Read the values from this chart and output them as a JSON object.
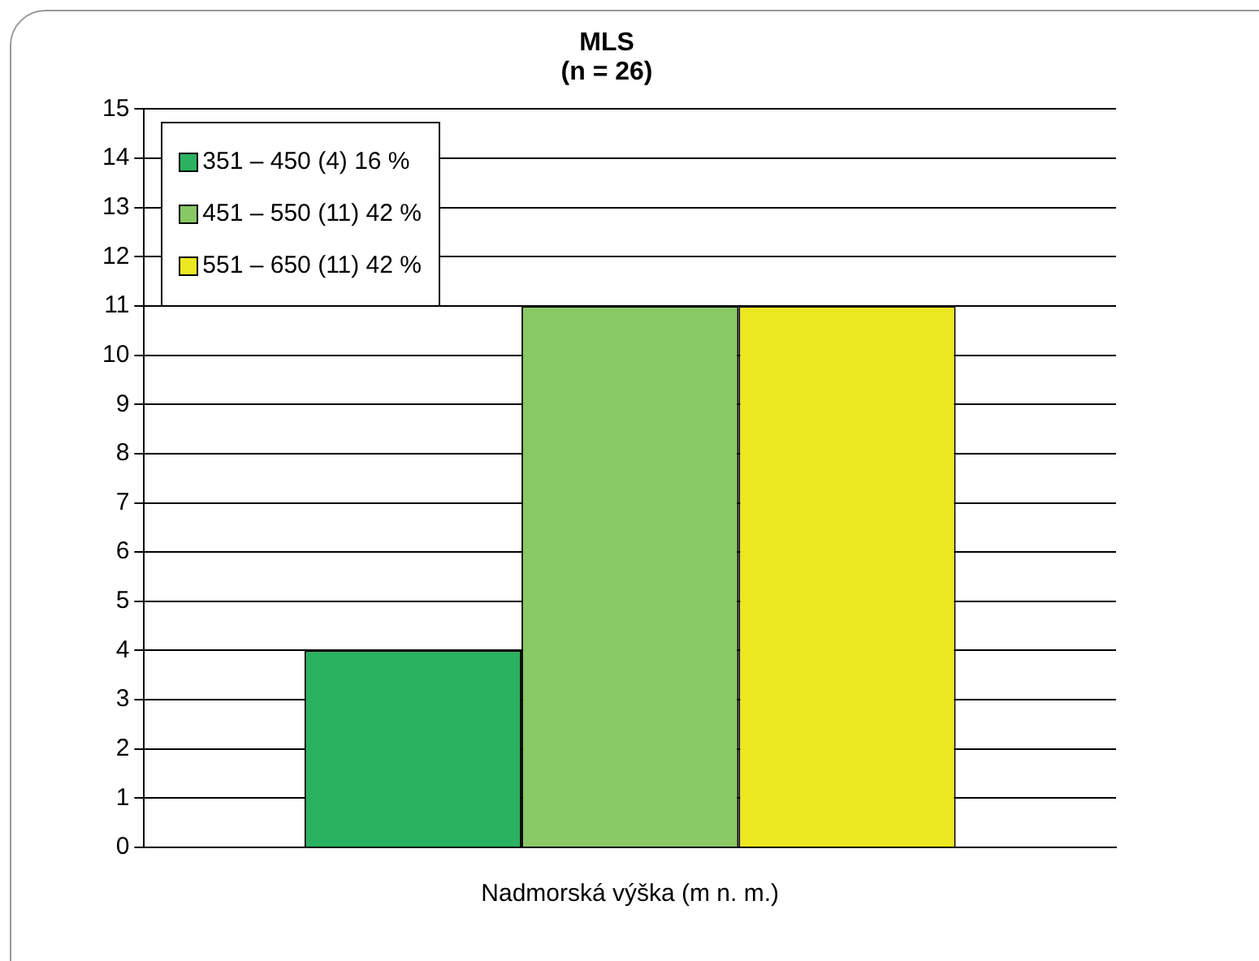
{
  "chart_data": {
    "type": "bar",
    "title": "MLS",
    "subtitle": "(n = 26)",
    "xlabel": "Nadmorská výška (m n. m.)",
    "categories": [
      null
    ],
    "series": [
      {
        "name": "351 – 450 (4) 16 %",
        "color": "#2ab260",
        "values": [
          4
        ]
      },
      {
        "name": "451 – 550 (11) 42 %",
        "color": "#88c865",
        "values": [
          11
        ]
      },
      {
        "name": "551 – 650 (11) 42 %",
        "color": "#ece820",
        "values": [
          11
        ]
      }
    ],
    "ylim": [
      0,
      15
    ],
    "yticks": [
      0,
      1,
      2,
      3,
      4,
      5,
      6,
      7,
      8,
      9,
      10,
      11,
      12,
      13,
      14,
      15
    ],
    "grid": "y",
    "legend": "top left"
  }
}
